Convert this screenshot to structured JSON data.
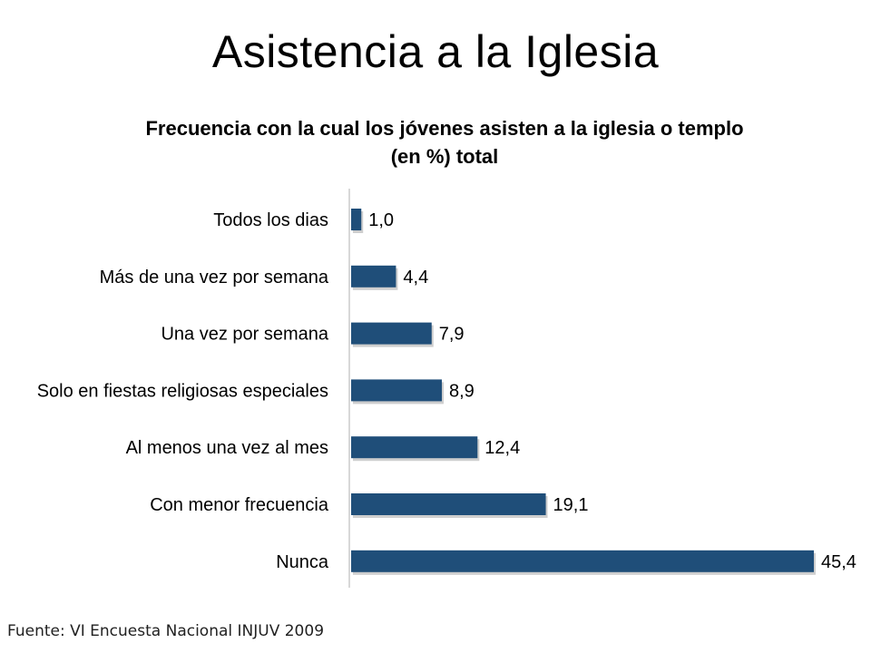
{
  "slide": {
    "title": "Asistencia a la Iglesia",
    "source": "Fuente: VI Encuesta Nacional INJUV 2009"
  },
  "chart_data": {
    "type": "bar",
    "orientation": "horizontal",
    "title_lines": [
      "Frecuencia con la cual los jóvenes asisten a la iglesia o templo",
      "(en %) total"
    ],
    "categories": [
      "Todos los dias",
      "Más de una vez por semana",
      "Una vez por semana",
      "Solo en fiestas religiosas especiales",
      "Al menos una vez al mes",
      "Con menor frecuencia",
      "Nunca"
    ],
    "values": [
      1.0,
      4.4,
      7.9,
      8.9,
      12.4,
      19.1,
      45.4
    ],
    "data_labels": [
      "1,0",
      "4,4",
      "7,9",
      "8,9",
      "12,4",
      "19,1",
      "45,4"
    ],
    "bar_color": "#1f4e79",
    "xlim": [
      0,
      45.4
    ],
    "grid": false,
    "legend": "none"
  }
}
